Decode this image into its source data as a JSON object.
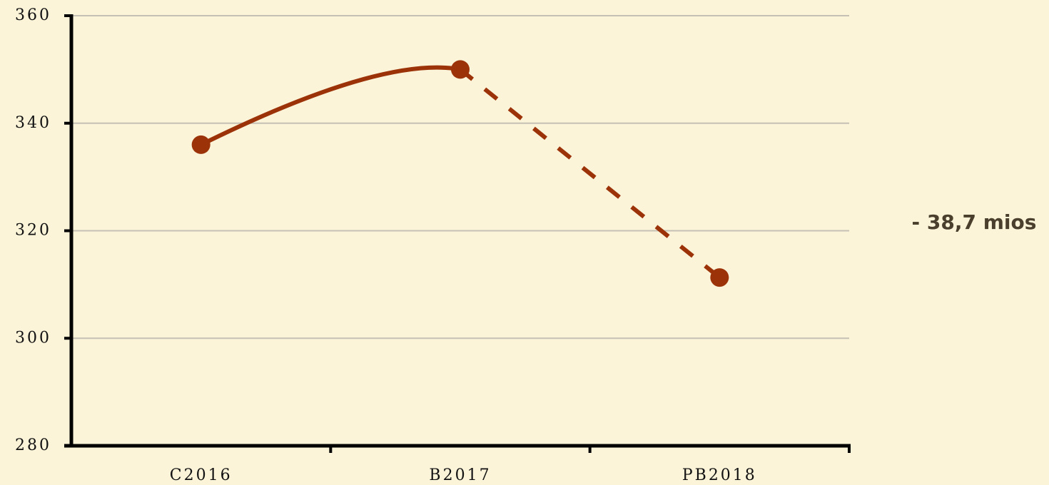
{
  "chart_data": {
    "type": "line",
    "categories": [
      "C2016",
      "B2017",
      "PB2018"
    ],
    "series": [
      {
        "color": "#9b3208",
        "values": [
          336,
          350,
          311.3
        ],
        "segment_styles": [
          "solid",
          "dashed"
        ]
      }
    ],
    "ylim": [
      280,
      360
    ],
    "yticks": [
      280,
      300,
      320,
      340,
      360
    ],
    "grid": true,
    "annotations": [
      "- 38,7 mios"
    ]
  }
}
